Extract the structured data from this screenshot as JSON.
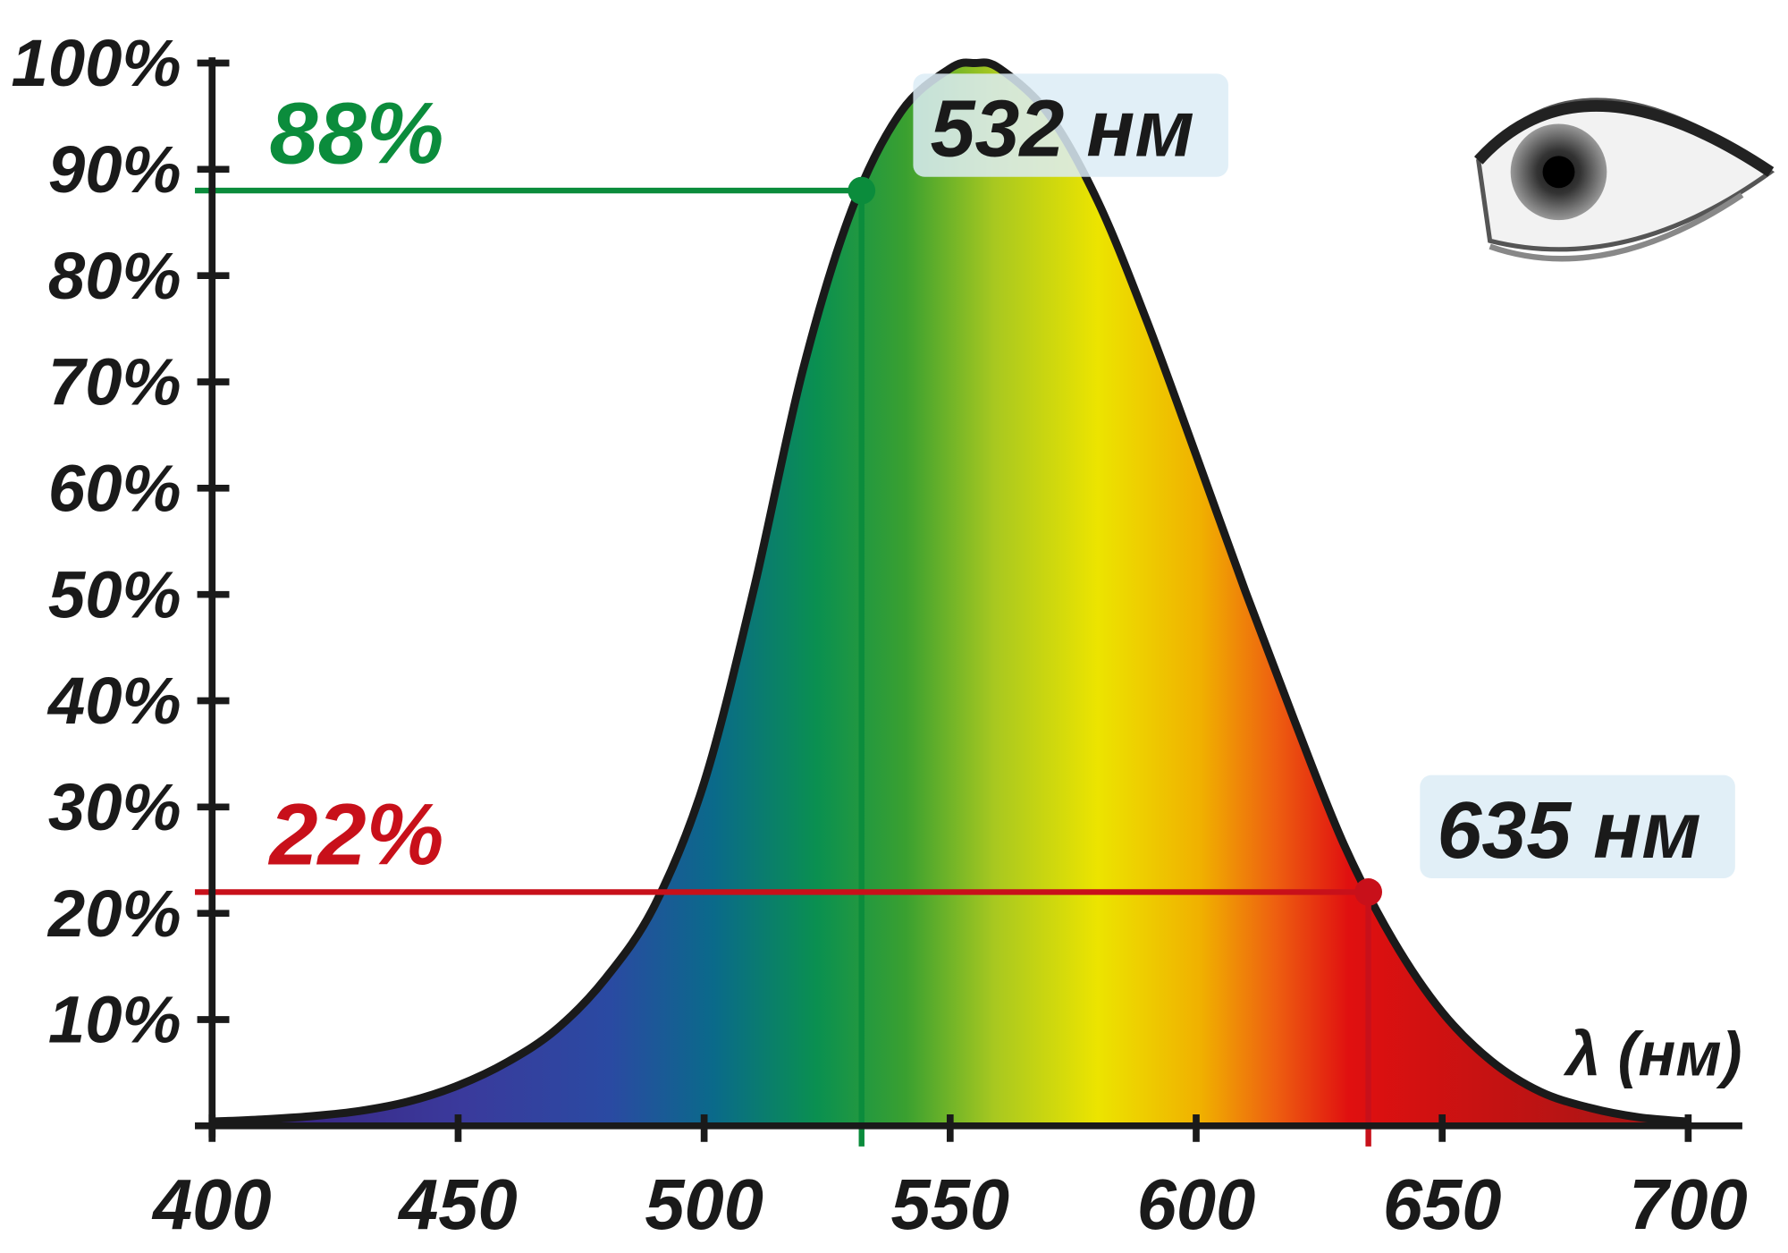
{
  "chart_data": {
    "type": "area",
    "x": [
      400,
      410,
      420,
      430,
      440,
      450,
      460,
      470,
      480,
      490,
      500,
      510,
      520,
      530,
      540,
      550,
      555,
      560,
      570,
      580,
      590,
      600,
      610,
      620,
      630,
      640,
      650,
      660,
      670,
      680,
      690,
      700
    ],
    "values": [
      0.4,
      0.6,
      0.9,
      1.4,
      2.3,
      3.8,
      6,
      9.1,
      13.9,
      20.8,
      32.3,
      50.3,
      71,
      86.2,
      95.4,
      99.5,
      100,
      99.5,
      95.2,
      87,
      75.7,
      63.1,
      50.3,
      38.1,
      26.5,
      17.5,
      10.7,
      6.1,
      3.2,
      1.7,
      0.8,
      0.4
    ],
    "color": "#1a1a1a",
    "xlim": [
      400,
      711
    ],
    "ylim": [
      0,
      100
    ],
    "xticks": [
      400,
      450,
      500,
      550,
      600,
      650,
      700
    ],
    "yticks": [
      {
        "value": 10,
        "label": "10%"
      },
      {
        "value": 20,
        "label": "20%"
      },
      {
        "value": 30,
        "label": "30%"
      },
      {
        "value": 40,
        "label": "40%"
      },
      {
        "value": 50,
        "label": "50%"
      },
      {
        "value": 60,
        "label": "60%"
      },
      {
        "value": 70,
        "label": "70%"
      },
      {
        "value": 80,
        "label": "80%"
      },
      {
        "value": 90,
        "label": "90%"
      },
      {
        "value": 100,
        "label": "100%"
      }
    ],
    "xlabel": "λ (нм)",
    "markers": [
      {
        "x": 532,
        "y": 88,
        "y_label": "88%",
        "x_label": "532 нм",
        "color": "#0b8c3c"
      },
      {
        "x": 635,
        "y": 22,
        "y_label": "22%",
        "x_label": "635 нм",
        "color": "#c8101a"
      }
    ]
  }
}
